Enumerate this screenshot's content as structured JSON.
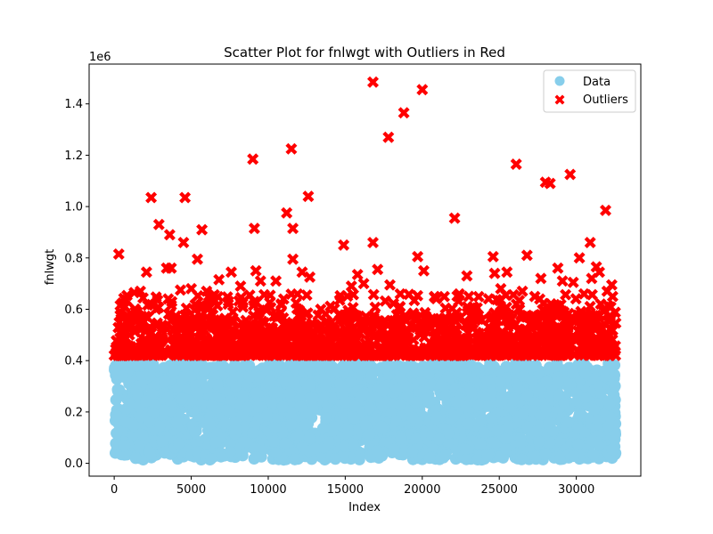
{
  "chart_data": {
    "type": "scatter",
    "title": "Scatter Plot for fnlwgt with Outliers in Red",
    "xlabel": "Index",
    "ylabel": "fnlwgt",
    "y_offset_text": "1e6",
    "xlim": [
      -1628,
      34188
    ],
    "ylim": [
      -0.05,
      1.555
    ],
    "xticks": [
      0,
      5000,
      10000,
      15000,
      20000,
      25000,
      30000
    ],
    "xtick_labels": [
      "0",
      "5000",
      "10000",
      "15000",
      "20000",
      "25000",
      "30000"
    ],
    "yticks": [
      0.0,
      0.2,
      0.4,
      0.6,
      0.8,
      1.0,
      1.2,
      1.4
    ],
    "ytick_labels": [
      "0.0",
      "0.2",
      "0.4",
      "0.6",
      "0.8",
      "1.0",
      "1.2",
      "1.4"
    ],
    "grid": false,
    "legend_position": "top-right",
    "series": [
      {
        "name": "Data",
        "marker": "circle",
        "color": "#87CEEB",
        "x_range": [
          0,
          32560
        ],
        "y_range": [
          0.013,
          0.39
        ],
        "count": 32561
      },
      {
        "name": "Outliers",
        "marker": "x",
        "color": "#FF0000",
        "dense_x_range": [
          0,
          32560
        ],
        "dense_y_range": [
          0.42,
          0.58
        ],
        "points": [
          [
            300,
            0.815
          ],
          [
            700,
            0.61
          ],
          [
            1300,
            0.665
          ],
          [
            1700,
            0.67
          ],
          [
            2100,
            0.745
          ],
          [
            2400,
            1.035
          ],
          [
            2900,
            0.93
          ],
          [
            3400,
            0.76
          ],
          [
            3600,
            0.89
          ],
          [
            3700,
            0.76
          ],
          [
            4300,
            0.675
          ],
          [
            4500,
            0.86
          ],
          [
            4600,
            1.035
          ],
          [
            5000,
            0.68
          ],
          [
            5400,
            0.795
          ],
          [
            5700,
            0.91
          ],
          [
            6000,
            0.67
          ],
          [
            6800,
            0.715
          ],
          [
            7600,
            0.745
          ],
          [
            8200,
            0.69
          ],
          [
            8800,
            0.655
          ],
          [
            9000,
            1.185
          ],
          [
            9100,
            0.915
          ],
          [
            9200,
            0.75
          ],
          [
            9500,
            0.71
          ],
          [
            10500,
            0.71
          ],
          [
            11200,
            0.975
          ],
          [
            11500,
            1.225
          ],
          [
            11600,
            0.915
          ],
          [
            11600,
            0.795
          ],
          [
            12200,
            0.745
          ],
          [
            12500,
            0.655
          ],
          [
            12600,
            1.04
          ],
          [
            12700,
            0.725
          ],
          [
            14900,
            0.85
          ],
          [
            15400,
            0.69
          ],
          [
            15800,
            0.735
          ],
          [
            16200,
            0.7
          ],
          [
            16800,
            1.485
          ],
          [
            16800,
            0.86
          ],
          [
            17100,
            0.755
          ],
          [
            17800,
            1.27
          ],
          [
            17900,
            0.695
          ],
          [
            18800,
            1.365
          ],
          [
            19700,
            0.805
          ],
          [
            20000,
            1.455
          ],
          [
            20100,
            0.75
          ],
          [
            20800,
            0.65
          ],
          [
            22100,
            0.955
          ],
          [
            22400,
            0.66
          ],
          [
            22900,
            0.73
          ],
          [
            24600,
            0.805
          ],
          [
            24700,
            0.74
          ],
          [
            25100,
            0.68
          ],
          [
            25500,
            0.745
          ],
          [
            26100,
            1.165
          ],
          [
            26500,
            0.67
          ],
          [
            26800,
            0.81
          ],
          [
            27300,
            0.65
          ],
          [
            27700,
            0.72
          ],
          [
            28000,
            1.095
          ],
          [
            28300,
            1.09
          ],
          [
            28800,
            0.76
          ],
          [
            29100,
            0.71
          ],
          [
            29600,
            1.125
          ],
          [
            29800,
            0.705
          ],
          [
            30200,
            0.8
          ],
          [
            30500,
            0.66
          ],
          [
            30900,
            0.86
          ],
          [
            31000,
            0.72
          ],
          [
            31300,
            0.765
          ],
          [
            31500,
            0.745
          ],
          [
            31900,
            0.985
          ],
          [
            32000,
            0.67
          ],
          [
            32300,
            0.695
          ]
        ]
      }
    ]
  }
}
